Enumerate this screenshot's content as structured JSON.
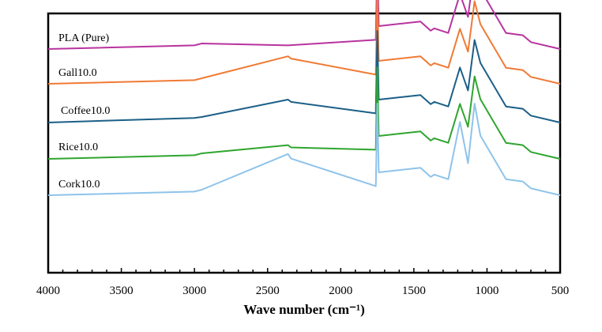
{
  "chart_data": {
    "type": "line",
    "title": "",
    "xlabel": "Wave number (cm⁻¹)",
    "ylabel": "",
    "xlim": [
      4000,
      500
    ],
    "x_reversed": true,
    "x_ticks": [
      "4000",
      "3500",
      "3000",
      "2500",
      "2000",
      "1500",
      "1000",
      "500"
    ],
    "y_ticks_shown": false,
    "grid": false,
    "legend": "labels above each trace",
    "series": [
      {
        "name": "PLA (Pure)",
        "color": "#B8339E",
        "baseline": 0.0,
        "points": [
          [
            4000,
            0
          ],
          [
            3000,
            -0.08
          ],
          [
            2950,
            -0.12
          ],
          [
            2360,
            -0.08
          ],
          [
            1760,
            -0.2
          ],
          [
            1750,
            -2.0
          ],
          [
            1740,
            -0.5
          ],
          [
            1455,
            -0.6
          ],
          [
            1385,
            -0.4
          ],
          [
            1360,
            -0.45
          ],
          [
            1265,
            -0.35
          ],
          [
            1185,
            -1.2
          ],
          [
            1130,
            -0.7
          ],
          [
            1085,
            -1.8
          ],
          [
            1045,
            -1.3
          ],
          [
            870,
            -0.35
          ],
          [
            755,
            -0.3
          ],
          [
            700,
            -0.15
          ],
          [
            500,
            0
          ]
        ]
      },
      {
        "name": "Gall10.0",
        "color": "#F07A35",
        "baseline": 0.0,
        "points": [
          [
            4000,
            0
          ],
          [
            3000,
            -0.08
          ],
          [
            2950,
            -0.12
          ],
          [
            2360,
            -0.6
          ],
          [
            2340,
            -0.55
          ],
          [
            1760,
            -0.2
          ],
          [
            1750,
            -2.0
          ],
          [
            1740,
            -0.5
          ],
          [
            1455,
            -0.6
          ],
          [
            1385,
            -0.4
          ],
          [
            1360,
            -0.45
          ],
          [
            1265,
            -0.35
          ],
          [
            1185,
            -1.2
          ],
          [
            1130,
            -0.7
          ],
          [
            1085,
            -1.8
          ],
          [
            1045,
            -1.3
          ],
          [
            870,
            -0.35
          ],
          [
            755,
            -0.3
          ],
          [
            700,
            -0.15
          ],
          [
            500,
            0
          ]
        ]
      },
      {
        "name": "Coffee10.0",
        "color": "#1B5F87",
        "baseline": 0.0,
        "points": [
          [
            4000,
            0
          ],
          [
            3000,
            -0.1
          ],
          [
            2950,
            -0.12
          ],
          [
            2360,
            -0.5
          ],
          [
            2340,
            -0.45
          ],
          [
            1760,
            -0.2
          ],
          [
            1750,
            -2.0
          ],
          [
            1740,
            -0.5
          ],
          [
            1455,
            -0.6
          ],
          [
            1385,
            -0.4
          ],
          [
            1360,
            -0.45
          ],
          [
            1265,
            -0.35
          ],
          [
            1185,
            -1.2
          ],
          [
            1130,
            -0.7
          ],
          [
            1085,
            -1.8
          ],
          [
            1045,
            -1.3
          ],
          [
            870,
            -0.35
          ],
          [
            755,
            -0.3
          ],
          [
            700,
            -0.15
          ],
          [
            500,
            0
          ]
        ]
      },
      {
        "name": "Rice10.0",
        "color": "#2FA52F",
        "baseline": 0.0,
        "points": [
          [
            4000,
            0
          ],
          [
            3000,
            -0.08
          ],
          [
            2950,
            -0.12
          ],
          [
            2360,
            -0.3
          ],
          [
            2340,
            -0.25
          ],
          [
            1760,
            -0.2
          ],
          [
            1750,
            -2.0
          ],
          [
            1740,
            -0.5
          ],
          [
            1455,
            -0.6
          ],
          [
            1385,
            -0.4
          ],
          [
            1360,
            -0.45
          ],
          [
            1265,
            -0.35
          ],
          [
            1185,
            -1.2
          ],
          [
            1130,
            -0.7
          ],
          [
            1085,
            -1.8
          ],
          [
            1045,
            -1.3
          ],
          [
            870,
            -0.35
          ],
          [
            755,
            -0.3
          ],
          [
            700,
            -0.15
          ],
          [
            500,
            0
          ]
        ]
      },
      {
        "name": "Cork10.0",
        "color": "#8EC3EA",
        "baseline": 0.0,
        "points": [
          [
            4000,
            0
          ],
          [
            3000,
            -0.08
          ],
          [
            2950,
            -0.12
          ],
          [
            2360,
            -0.9
          ],
          [
            2340,
            -0.8
          ],
          [
            1760,
            -0.2
          ],
          [
            1750,
            -2.0
          ],
          [
            1740,
            -0.5
          ],
          [
            1455,
            -0.6
          ],
          [
            1385,
            -0.4
          ],
          [
            1360,
            -0.45
          ],
          [
            1265,
            -0.35
          ],
          [
            1185,
            -1.6
          ],
          [
            1130,
            -0.7
          ],
          [
            1085,
            -2.0
          ],
          [
            1045,
            -1.3
          ],
          [
            870,
            -0.35
          ],
          [
            755,
            -0.3
          ],
          [
            700,
            -0.15
          ],
          [
            500,
            0
          ]
        ]
      }
    ]
  }
}
